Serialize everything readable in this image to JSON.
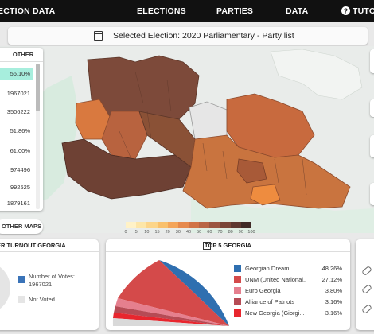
{
  "nav": {
    "brand": "ECTION DATA",
    "items": [
      "ELECTIONS",
      "PARTIES",
      "DATA"
    ],
    "tutorial": "TUTO",
    "help_icon": "question-circle-icon"
  },
  "selected_election": {
    "label": "Selected Election:",
    "value": "2020 Parliamentary - Party list",
    "icon": "calendar-icon"
  },
  "side_panel": {
    "header": "OTHER",
    "rows": [
      "56.10%",
      "1967021",
      "3506222",
      "51.86%",
      "61.00%",
      "974496",
      "992525",
      "1879161",
      ""
    ],
    "highlight_color": "#a7eedd"
  },
  "legend_scale": {
    "ticks": [
      "0",
      "5",
      "10",
      "15",
      "20",
      "30",
      "40",
      "50",
      "60",
      "70",
      "80",
      "90",
      "100"
    ],
    "colors": [
      "#fff2c7",
      "#fde6a8",
      "#fcd58a",
      "#f9c06c",
      "#f4a55a",
      "#e6894d",
      "#d17446",
      "#b96545",
      "#9b5541",
      "#7a4638",
      "#5e3830",
      "#402a26"
    ]
  },
  "other_maps_button": "OTHER MAPS",
  "turnout_card": {
    "title": "ER TURNOUT GEORGIA",
    "voted_label": "Number of Votes:",
    "voted_value": "1967021",
    "not_voted_label": "Not Voted",
    "voted_color": "#3a73b8",
    "not_voted_color": "#e5e5e5"
  },
  "top5_card": {
    "title": "TOP 5 GEORGIA",
    "icon": "expand-icon",
    "parties": [
      {
        "name": "Georgian Dream",
        "pct": "48.26%",
        "color": "#2f6fb0"
      },
      {
        "name": "UNM (United National...",
        "pct": "27.12%",
        "color": "#d44a4a"
      },
      {
        "name": "Euro Georgia",
        "pct": "3.80%",
        "color": "#e57f8e"
      },
      {
        "name": "Alliance of Patriots",
        "pct": "3.16%",
        "color": "#b64b55"
      },
      {
        "name": "New Georgia (Giorgi...",
        "pct": "3.16%",
        "color": "#e8262e"
      }
    ]
  },
  "right_icons": [
    "link-icon",
    "link-icon",
    "link-icon"
  ]
}
